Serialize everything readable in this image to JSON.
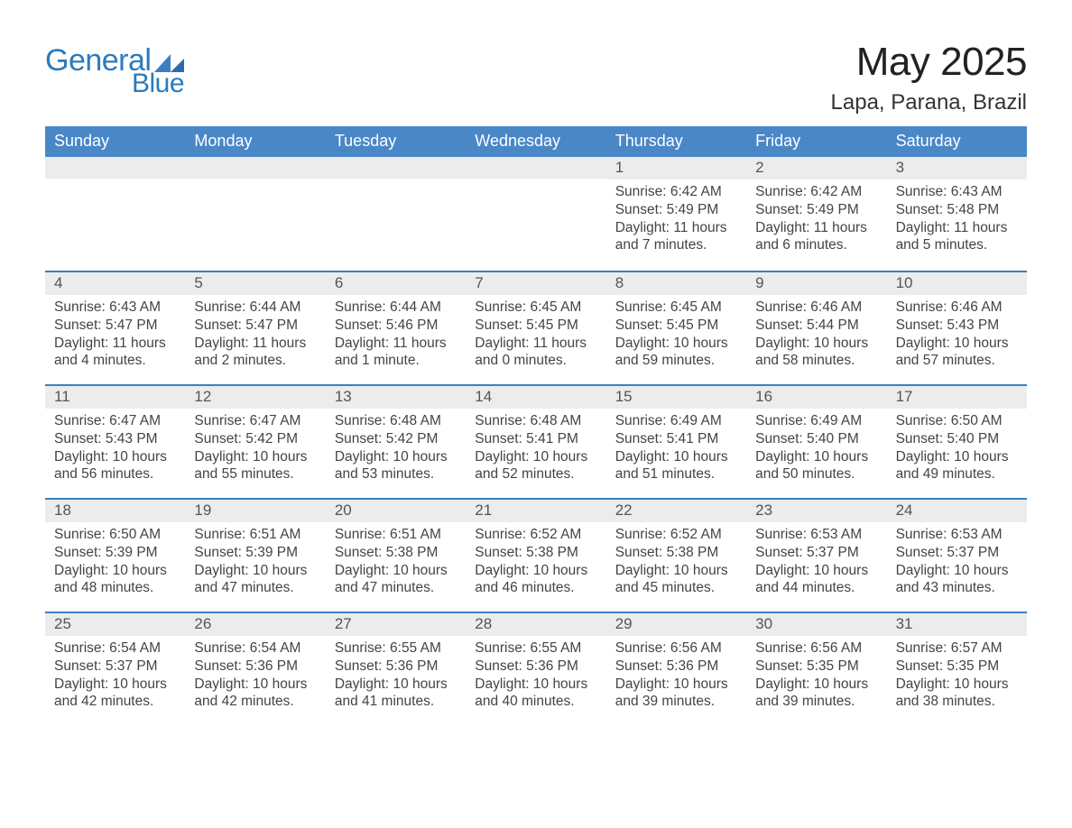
{
  "brand": {
    "word1": "General",
    "word2": "Blue",
    "logo_color": "#2b7bbd",
    "mark_color": "#3b7fc4"
  },
  "header": {
    "month_title": "May 2025",
    "location": "Lapa, Parana, Brazil"
  },
  "colors": {
    "weekday_bg": "#4a87c7",
    "weekday_fg": "#ffffff",
    "daynum_bg": "#ececec",
    "week_border": "#3b7fc4",
    "text": "#333333",
    "body_bg": "#ffffff"
  },
  "typography": {
    "month_title_fontsize": 44,
    "location_fontsize": 24,
    "weekday_fontsize": 18,
    "daynum_fontsize": 17,
    "body_fontsize": 15.5,
    "font_family": "Segoe UI, Arial, Helvetica, sans-serif"
  },
  "calendar": {
    "weekdays": [
      "Sunday",
      "Monday",
      "Tuesday",
      "Wednesday",
      "Thursday",
      "Friday",
      "Saturday"
    ],
    "first_weekday_index": 4,
    "days": [
      {
        "n": 1,
        "sunrise": "6:42 AM",
        "sunset": "5:49 PM",
        "daylight": "11 hours and 7 minutes."
      },
      {
        "n": 2,
        "sunrise": "6:42 AM",
        "sunset": "5:49 PM",
        "daylight": "11 hours and 6 minutes."
      },
      {
        "n": 3,
        "sunrise": "6:43 AM",
        "sunset": "5:48 PM",
        "daylight": "11 hours and 5 minutes."
      },
      {
        "n": 4,
        "sunrise": "6:43 AM",
        "sunset": "5:47 PM",
        "daylight": "11 hours and 4 minutes."
      },
      {
        "n": 5,
        "sunrise": "6:44 AM",
        "sunset": "5:47 PM",
        "daylight": "11 hours and 2 minutes."
      },
      {
        "n": 6,
        "sunrise": "6:44 AM",
        "sunset": "5:46 PM",
        "daylight": "11 hours and 1 minute."
      },
      {
        "n": 7,
        "sunrise": "6:45 AM",
        "sunset": "5:45 PM",
        "daylight": "11 hours and 0 minutes."
      },
      {
        "n": 8,
        "sunrise": "6:45 AM",
        "sunset": "5:45 PM",
        "daylight": "10 hours and 59 minutes."
      },
      {
        "n": 9,
        "sunrise": "6:46 AM",
        "sunset": "5:44 PM",
        "daylight": "10 hours and 58 minutes."
      },
      {
        "n": 10,
        "sunrise": "6:46 AM",
        "sunset": "5:43 PM",
        "daylight": "10 hours and 57 minutes."
      },
      {
        "n": 11,
        "sunrise": "6:47 AM",
        "sunset": "5:43 PM",
        "daylight": "10 hours and 56 minutes."
      },
      {
        "n": 12,
        "sunrise": "6:47 AM",
        "sunset": "5:42 PM",
        "daylight": "10 hours and 55 minutes."
      },
      {
        "n": 13,
        "sunrise": "6:48 AM",
        "sunset": "5:42 PM",
        "daylight": "10 hours and 53 minutes."
      },
      {
        "n": 14,
        "sunrise": "6:48 AM",
        "sunset": "5:41 PM",
        "daylight": "10 hours and 52 minutes."
      },
      {
        "n": 15,
        "sunrise": "6:49 AM",
        "sunset": "5:41 PM",
        "daylight": "10 hours and 51 minutes."
      },
      {
        "n": 16,
        "sunrise": "6:49 AM",
        "sunset": "5:40 PM",
        "daylight": "10 hours and 50 minutes."
      },
      {
        "n": 17,
        "sunrise": "6:50 AM",
        "sunset": "5:40 PM",
        "daylight": "10 hours and 49 minutes."
      },
      {
        "n": 18,
        "sunrise": "6:50 AM",
        "sunset": "5:39 PM",
        "daylight": "10 hours and 48 minutes."
      },
      {
        "n": 19,
        "sunrise": "6:51 AM",
        "sunset": "5:39 PM",
        "daylight": "10 hours and 47 minutes."
      },
      {
        "n": 20,
        "sunrise": "6:51 AM",
        "sunset": "5:38 PM",
        "daylight": "10 hours and 47 minutes."
      },
      {
        "n": 21,
        "sunrise": "6:52 AM",
        "sunset": "5:38 PM",
        "daylight": "10 hours and 46 minutes."
      },
      {
        "n": 22,
        "sunrise": "6:52 AM",
        "sunset": "5:38 PM",
        "daylight": "10 hours and 45 minutes."
      },
      {
        "n": 23,
        "sunrise": "6:53 AM",
        "sunset": "5:37 PM",
        "daylight": "10 hours and 44 minutes."
      },
      {
        "n": 24,
        "sunrise": "6:53 AM",
        "sunset": "5:37 PM",
        "daylight": "10 hours and 43 minutes."
      },
      {
        "n": 25,
        "sunrise": "6:54 AM",
        "sunset": "5:37 PM",
        "daylight": "10 hours and 42 minutes."
      },
      {
        "n": 26,
        "sunrise": "6:54 AM",
        "sunset": "5:36 PM",
        "daylight": "10 hours and 42 minutes."
      },
      {
        "n": 27,
        "sunrise": "6:55 AM",
        "sunset": "5:36 PM",
        "daylight": "10 hours and 41 minutes."
      },
      {
        "n": 28,
        "sunrise": "6:55 AM",
        "sunset": "5:36 PM",
        "daylight": "10 hours and 40 minutes."
      },
      {
        "n": 29,
        "sunrise": "6:56 AM",
        "sunset": "5:36 PM",
        "daylight": "10 hours and 39 minutes."
      },
      {
        "n": 30,
        "sunrise": "6:56 AM",
        "sunset": "5:35 PM",
        "daylight": "10 hours and 39 minutes."
      },
      {
        "n": 31,
        "sunrise": "6:57 AM",
        "sunset": "5:35 PM",
        "daylight": "10 hours and 38 minutes."
      }
    ],
    "labels": {
      "sunrise_prefix": "Sunrise: ",
      "sunset_prefix": "Sunset: ",
      "daylight_prefix": "Daylight: "
    }
  }
}
